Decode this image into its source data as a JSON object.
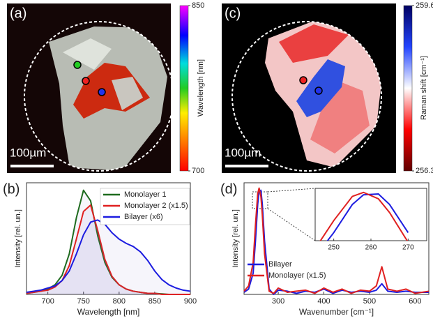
{
  "images": [
    {
      "label": "(a)",
      "scale_bar": "100µm",
      "colorbar": {
        "title": "Wavelength [nm]",
        "lim": [
          700,
          850
        ],
        "ticks": [
          700,
          850
        ]
      }
    },
    {
      "label": "(c)",
      "scale_bar": "100µm",
      "colorbar": {
        "title": "Raman shift [cm⁻¹]",
        "lim": [
          256.3,
          259.6
        ],
        "ticks": [
          256.3,
          259.6
        ]
      }
    }
  ],
  "chart_data": [
    {
      "type": "line",
      "panel_label": "(b)",
      "x_label": "Wavelength [nm]",
      "y_label": "Intensity [rel. un.]",
      "legend": "top-right",
      "x": [
        670,
        680,
        690,
        700,
        710,
        720,
        730,
        740,
        750,
        760,
        770,
        780,
        790,
        800,
        810,
        820,
        830,
        840,
        850,
        860,
        870,
        880,
        890,
        900
      ],
      "series": [
        {
          "name": "Monolayer 1",
          "color": "#1e6b1e",
          "values": [
            0.01,
            0.02,
            0.03,
            0.05,
            0.09,
            0.18,
            0.38,
            0.72,
            0.98,
            0.88,
            0.55,
            0.3,
            0.16,
            0.09,
            0.05,
            0.03,
            0.02,
            0.01,
            0.01,
            0.005,
            0,
            0,
            0,
            0
          ]
        },
        {
          "name": "Monolayer 2 (x1.5)",
          "color": "#e02020",
          "values": [
            0.01,
            0.02,
            0.03,
            0.04,
            0.07,
            0.13,
            0.27,
            0.52,
            0.78,
            0.84,
            0.6,
            0.33,
            0.17,
            0.09,
            0.05,
            0.03,
            0.02,
            0.01,
            0.01,
            0,
            0,
            0,
            0,
            0
          ]
        },
        {
          "name": "Bilayer (x6)",
          "color": "#1c1ce0",
          "values": [
            0.02,
            0.03,
            0.04,
            0.06,
            0.08,
            0.13,
            0.22,
            0.38,
            0.56,
            0.68,
            0.7,
            0.66,
            0.58,
            0.52,
            0.48,
            0.45,
            0.4,
            0.32,
            0.22,
            0.14,
            0.09,
            0.06,
            0.04,
            0.03
          ]
        }
      ],
      "xlim": [
        670,
        900
      ],
      "xticks": [
        700,
        750,
        800,
        850,
        900
      ],
      "ylim": [
        0,
        1.05
      ]
    },
    {
      "type": "line",
      "panel_label": "(d)",
      "x_label": "Wavenumber [cm⁻¹]",
      "y_label": "Intensity [rel. un.]",
      "legend": "bottom-left",
      "x": [
        225,
        235,
        245,
        250,
        255,
        258,
        262,
        265,
        270,
        280,
        290,
        300,
        320,
        340,
        360,
        380,
        400,
        420,
        440,
        460,
        480,
        500,
        515,
        527,
        540,
        560,
        580,
        600,
        630
      ],
      "series": [
        {
          "name": "Bilayer",
          "color": "#1c1ce0",
          "values": [
            0.02,
            0.05,
            0.2,
            0.5,
            0.85,
            0.97,
            0.98,
            0.85,
            0.5,
            0.05,
            0,
            0.04,
            0.03,
            0.01,
            0.03,
            0.02,
            0.05,
            0.01,
            0.04,
            0.02,
            0.03,
            0.02,
            0.04,
            0.1,
            0.03,
            0.02,
            0.03,
            0.02,
            0.02
          ]
        },
        {
          "name": "Monolayer (x1.5)",
          "color": "#e02020",
          "values": [
            0.03,
            0.08,
            0.3,
            0.65,
            0.95,
            1.0,
            0.92,
            0.75,
            0.38,
            0.03,
            0.01,
            0.06,
            0.02,
            0.03,
            0.04,
            0.01,
            0.06,
            0.02,
            0.05,
            0.01,
            0.04,
            0.03,
            0.08,
            0.26,
            0.05,
            0.03,
            0.05,
            0.01,
            0.03
          ]
        }
      ],
      "xlim": [
        225,
        630
      ],
      "xticks": [
        300,
        400,
        500,
        600
      ],
      "ylim": [
        0,
        1.05
      ],
      "inset": {
        "xlim": [
          245,
          275
        ],
        "xticks": [
          250,
          260,
          270
        ],
        "ylim": [
          0.4,
          1.05
        ]
      }
    }
  ]
}
